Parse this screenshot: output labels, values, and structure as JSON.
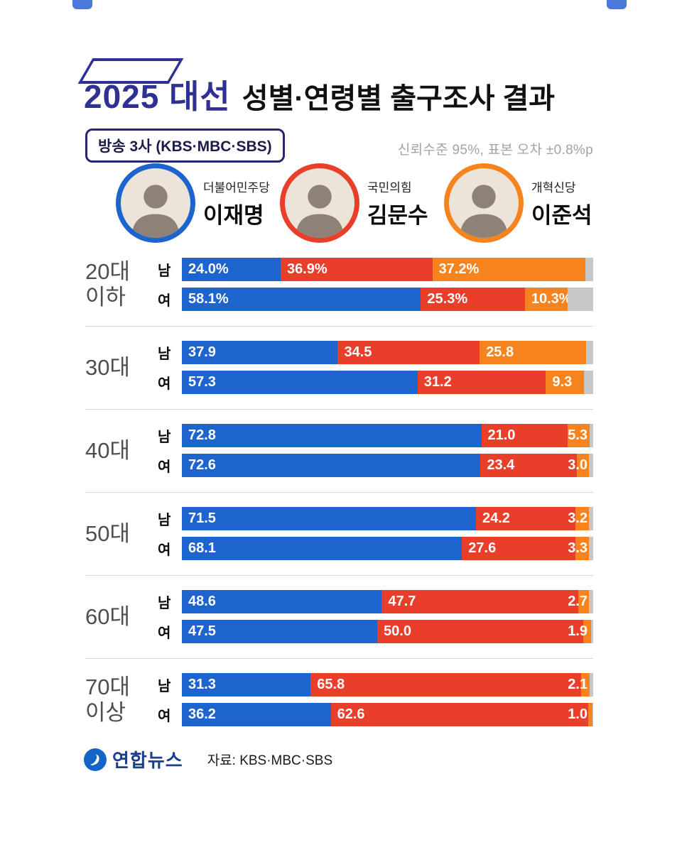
{
  "header": {
    "title_year": "2025 대선",
    "title_main": "성별·연령별 출구조사 결과",
    "badge_bold": "방송 3사",
    "badge_rest": " (KBS·MBC·SBS)",
    "note": "신뢰수준 95%, 표본 오차 ±0.8%p"
  },
  "candidates": [
    {
      "party": "더불어민주당",
      "name": "이재명",
      "color": "#1d64cf"
    },
    {
      "party": "국민의힘",
      "name": "김문수",
      "color": "#e93e2a"
    },
    {
      "party": "개혁신당",
      "name": "이준석",
      "color": "#f6831d"
    }
  ],
  "chart_data": {
    "type": "bar",
    "variant": "horizontal-stacked",
    "unit": "%",
    "title": "2025 대선 성별·연령별 출구조사 결과",
    "series": [
      "이재명 (더불어민주당)",
      "김문수 (국민의힘)",
      "이준석 (개혁신당)"
    ],
    "colors": [
      "#1d64cf",
      "#e93e2a",
      "#f6831d"
    ],
    "remainder_color": "#c7c7c7",
    "xlim": [
      0,
      100
    ],
    "groups": [
      {
        "age_lines": [
          "20대",
          "이하"
        ],
        "rows": [
          {
            "gender": "남",
            "values": [
              24.0,
              36.9,
              37.2
            ],
            "labels": [
              "24.0%",
              "36.9%",
              "37.2%"
            ]
          },
          {
            "gender": "여",
            "values": [
              58.1,
              25.3,
              10.3
            ],
            "labels": [
              "58.1%",
              "25.3%",
              "10.3%"
            ]
          }
        ]
      },
      {
        "age_lines": [
          "30대"
        ],
        "rows": [
          {
            "gender": "남",
            "values": [
              37.9,
              34.5,
              25.8
            ],
            "labels": [
              "37.9",
              "34.5",
              "25.8"
            ]
          },
          {
            "gender": "여",
            "values": [
              57.3,
              31.2,
              9.3
            ],
            "labels": [
              "57.3",
              "31.2",
              "9.3"
            ]
          }
        ]
      },
      {
        "age_lines": [
          "40대"
        ],
        "rows": [
          {
            "gender": "남",
            "values": [
              72.8,
              21.0,
              5.3
            ],
            "labels": [
              "72.8",
              "21.0",
              "5.3"
            ]
          },
          {
            "gender": "여",
            "values": [
              72.6,
              23.4,
              3.0
            ],
            "labels": [
              "72.6",
              "23.4",
              "3.0"
            ]
          }
        ]
      },
      {
        "age_lines": [
          "50대"
        ],
        "rows": [
          {
            "gender": "남",
            "values": [
              71.5,
              24.2,
              3.2
            ],
            "labels": [
              "71.5",
              "24.2",
              "3.2"
            ]
          },
          {
            "gender": "여",
            "values": [
              68.1,
              27.6,
              3.3
            ],
            "labels": [
              "68.1",
              "27.6",
              "3.3"
            ]
          }
        ]
      },
      {
        "age_lines": [
          "60대"
        ],
        "rows": [
          {
            "gender": "남",
            "values": [
              48.6,
              47.7,
              2.7
            ],
            "labels": [
              "48.6",
              "47.7",
              "2.7"
            ]
          },
          {
            "gender": "여",
            "values": [
              47.5,
              50.0,
              1.9
            ],
            "labels": [
              "47.5",
              "50.0",
              "1.9"
            ]
          }
        ]
      },
      {
        "age_lines": [
          "70대",
          "이상"
        ],
        "rows": [
          {
            "gender": "남",
            "values": [
              31.3,
              65.8,
              2.1
            ],
            "labels": [
              "31.3",
              "65.8",
              "2.1"
            ]
          },
          {
            "gender": "여",
            "values": [
              36.2,
              62.6,
              1.0
            ],
            "labels": [
              "36.2",
              "62.6",
              "1.0"
            ]
          }
        ]
      }
    ]
  },
  "footer": {
    "brand": "연합뉴스",
    "source": "자료: KBS·MBC·SBS"
  }
}
